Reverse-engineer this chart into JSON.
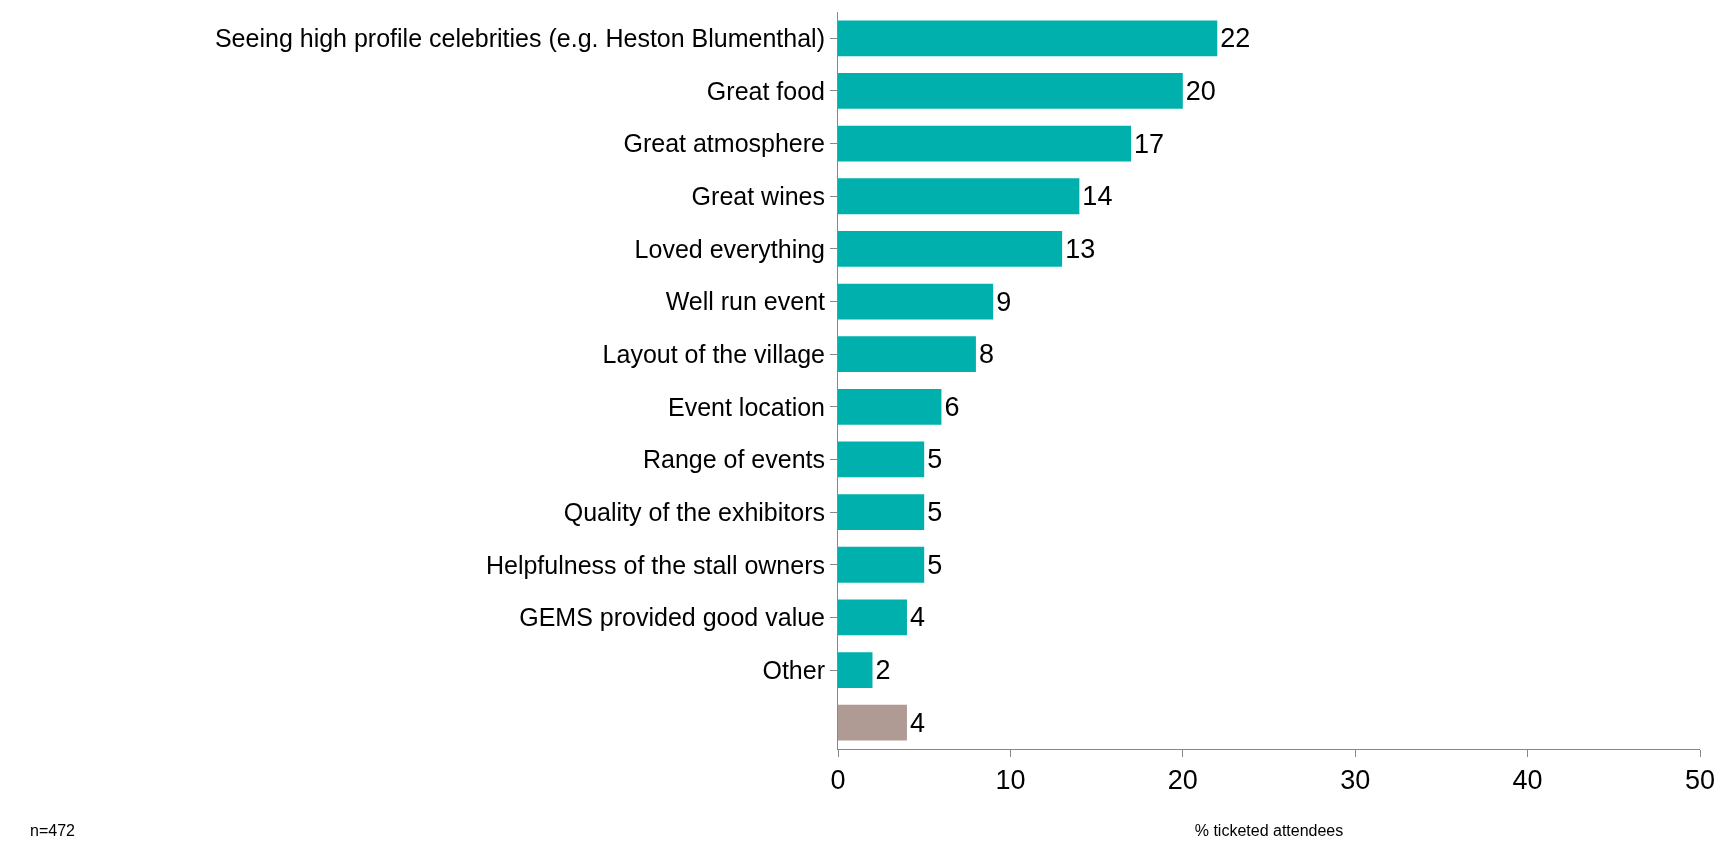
{
  "chart_data": {
    "type": "bar",
    "orientation": "horizontal",
    "categories": [
      "Seeing high profile celebrities (e.g. Heston Blumenthal)",
      "Great food",
      "Great atmosphere",
      "Great wines",
      "Loved everything",
      "Well run event",
      "Layout of the village",
      "Event location",
      "Range of events",
      "Quality of the exhibitors",
      "Helpfulness of the stall owners",
      "GEMS provided good value",
      "Other",
      null
    ],
    "values": [
      22,
      20,
      17,
      14,
      13,
      9,
      8,
      6,
      5,
      5,
      5,
      4,
      2,
      4
    ],
    "colors": [
      "#00b0ad",
      "#00b0ad",
      "#00b0ad",
      "#00b0ad",
      "#00b0ad",
      "#00b0ad",
      "#00b0ad",
      "#00b0ad",
      "#00b0ad",
      "#00b0ad",
      "#00b0ad",
      "#00b0ad",
      "#00b0ad",
      "#b09a94"
    ],
    "data_labels": true,
    "xlim": [
      0,
      50
    ],
    "xticks": [
      0,
      10,
      20,
      30,
      40,
      50
    ],
    "xlabel": "% ticketed attendees",
    "annotations": [
      "n=472"
    ],
    "grid": false,
    "legend": false
  }
}
